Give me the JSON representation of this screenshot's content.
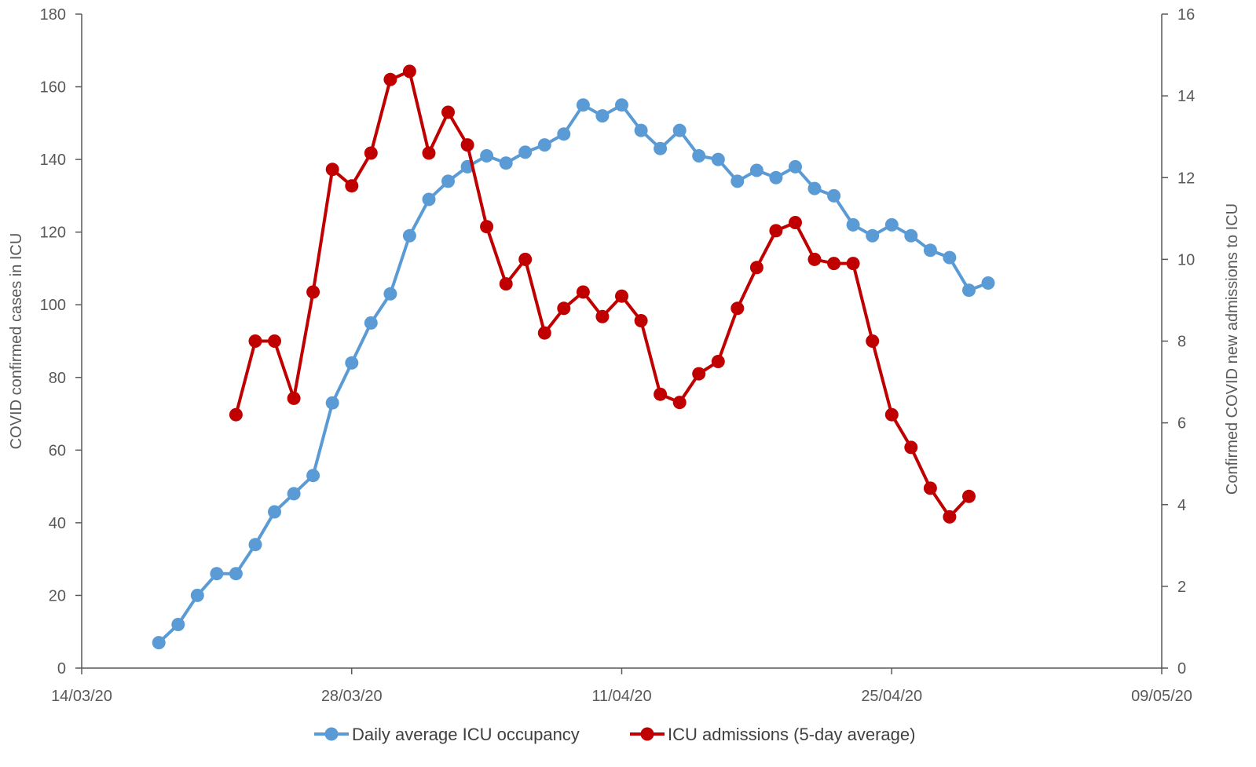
{
  "chart_data": {
    "type": "line",
    "title": "",
    "x_axis": {
      "type": "date",
      "range": [
        "14/03/20",
        "09/05/20"
      ],
      "ticks": [
        "14/03/20",
        "28/03/20",
        "11/04/20",
        "25/04/20",
        "09/05/20"
      ]
    },
    "y_axis_left": {
      "label": "COVID confirmed cases in ICU",
      "range": [
        0,
        180
      ],
      "ticks": [
        "0",
        "20",
        "40",
        "60",
        "80",
        "100",
        "120",
        "140",
        "160",
        "180"
      ]
    },
    "y_axis_right": {
      "label": "Confirmed COVID new admissions to ICU",
      "range": [
        0,
        16
      ],
      "ticks": [
        "0",
        "2",
        "4",
        "6",
        "8",
        "10",
        "12",
        "14",
        "16"
      ]
    },
    "grid": false,
    "legend_position": "bottom",
    "series": [
      {
        "name": "Daily average ICU occupancy",
        "axis": "left",
        "color": "#5B9BD5",
        "x": [
          "18/03/20",
          "19/03/20",
          "20/03/20",
          "21/03/20",
          "22/03/20",
          "23/03/20",
          "24/03/20",
          "25/03/20",
          "26/03/20",
          "27/03/20",
          "28/03/20",
          "29/03/20",
          "30/03/20",
          "31/03/20",
          "01/04/20",
          "02/04/20",
          "03/04/20",
          "04/04/20",
          "05/04/20",
          "06/04/20",
          "07/04/20",
          "08/04/20",
          "09/04/20",
          "10/04/20",
          "11/04/20",
          "12/04/20",
          "13/04/20",
          "14/04/20",
          "15/04/20",
          "16/04/20",
          "17/04/20",
          "18/04/20",
          "19/04/20",
          "20/04/20",
          "21/04/20",
          "22/04/20",
          "23/04/20",
          "24/04/20",
          "25/04/20",
          "26/04/20",
          "27/04/20",
          "28/04/20",
          "29/04/20",
          "30/04/20"
        ],
        "values": [
          7,
          12,
          20,
          26,
          26,
          34,
          43,
          48,
          53,
          73,
          84,
          95,
          103,
          119,
          129,
          134,
          138,
          141,
          139,
          142,
          144,
          147,
          155,
          152,
          155,
          148,
          143,
          148,
          141,
          140,
          134,
          137,
          135,
          138,
          132,
          130,
          122,
          119,
          122,
          119,
          115,
          113,
          104,
          106
        ]
      },
      {
        "name": "ICU admissions (5-day average)",
        "axis": "right",
        "color": "#C00000",
        "x": [
          "22/03/20",
          "23/03/20",
          "24/03/20",
          "25/03/20",
          "26/03/20",
          "27/03/20",
          "28/03/20",
          "29/03/20",
          "30/03/20",
          "31/03/20",
          "01/04/20",
          "02/04/20",
          "03/04/20",
          "04/04/20",
          "05/04/20",
          "06/04/20",
          "07/04/20",
          "08/04/20",
          "09/04/20",
          "10/04/20",
          "11/04/20",
          "12/04/20",
          "13/04/20",
          "14/04/20",
          "15/04/20",
          "16/04/20",
          "17/04/20",
          "18/04/20",
          "19/04/20",
          "20/04/20",
          "21/04/20",
          "22/04/20",
          "23/04/20",
          "24/04/20",
          "25/04/20",
          "26/04/20",
          "27/04/20",
          "28/04/20",
          "29/04/20"
        ],
        "values": [
          6.2,
          8.0,
          8.0,
          6.6,
          9.2,
          12.2,
          11.8,
          12.6,
          14.4,
          14.6,
          12.6,
          13.6,
          12.8,
          10.8,
          9.4,
          10.0,
          8.2,
          8.8,
          9.2,
          8.6,
          9.1,
          8.5,
          6.7,
          6.5,
          7.2,
          7.5,
          8.8,
          9.8,
          10.7,
          10.9,
          10.0,
          9.9,
          9.9,
          8.0,
          6.2,
          5.4,
          4.4,
          3.7,
          4.2
        ]
      }
    ]
  }
}
